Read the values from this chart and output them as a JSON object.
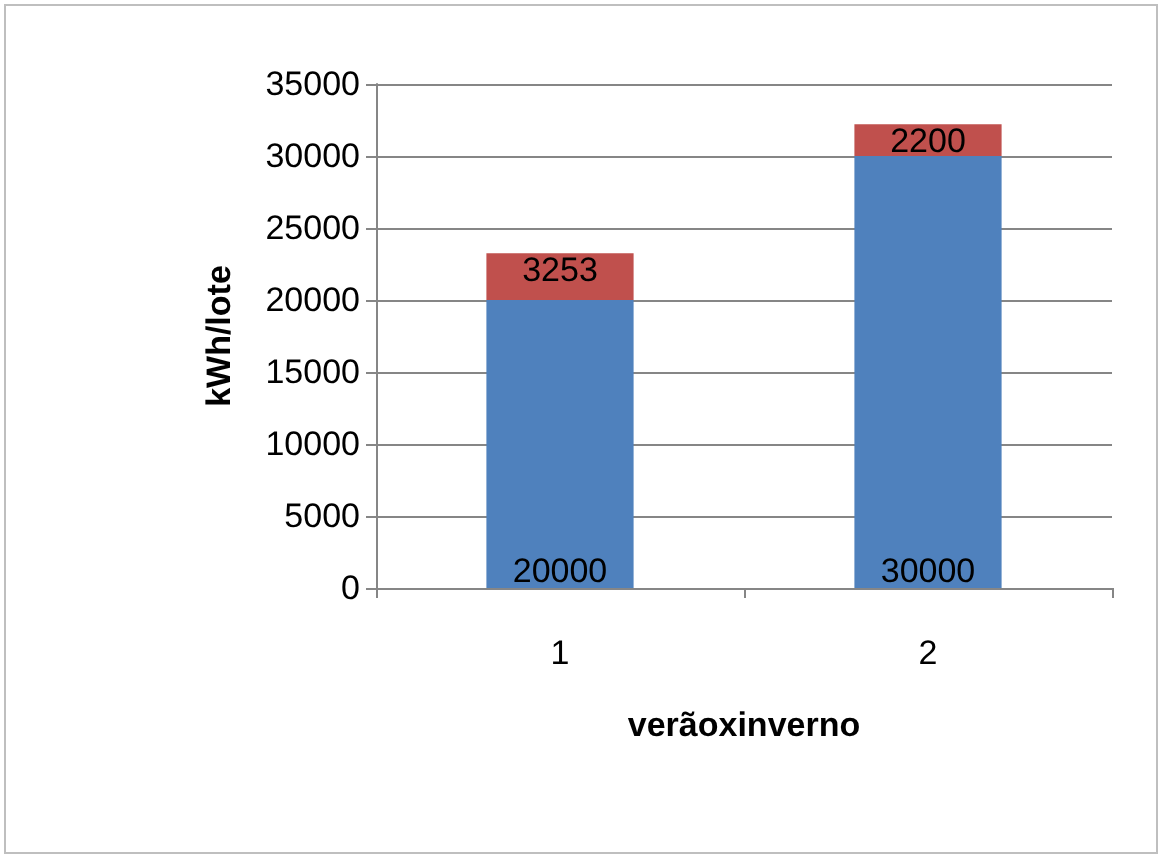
{
  "chart_data": {
    "type": "bar",
    "stacked": true,
    "categories": [
      "1",
      "2"
    ],
    "series": [
      {
        "color": "#4f81bd",
        "values": [
          20000,
          30000
        ]
      },
      {
        "color": "#c0504d",
        "values": [
          3253,
          2200
        ]
      }
    ],
    "ylim": [
      0,
      35000
    ],
    "yticks": [
      0,
      5000,
      10000,
      15000,
      20000,
      25000,
      30000,
      35000
    ],
    "xlabel": "verãoxinverno",
    "ylabel": "kWh/lote",
    "grid": "y",
    "data_labels": true
  }
}
